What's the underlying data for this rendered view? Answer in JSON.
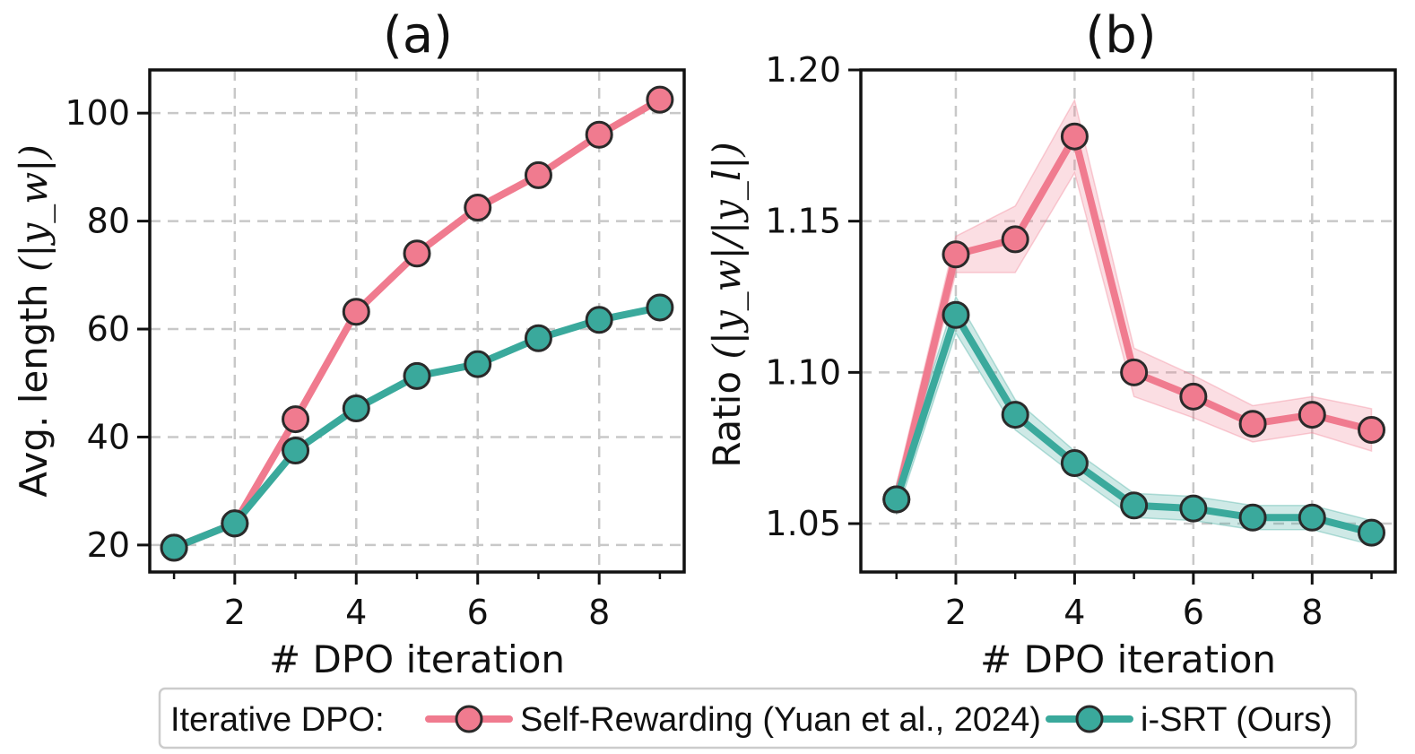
{
  "colors": {
    "self_rewarding": "#f07b8f",
    "isrt": "#3aa99c",
    "marker_edge": "#2a2a2a",
    "grid": "#c8c8c8"
  },
  "legend": {
    "prefix": "Iterative DPO:",
    "items": [
      "Self-Rewarding (Yuan et al., 2024)",
      "i-SRT (Ours)"
    ]
  },
  "chart_data": [
    {
      "type": "line",
      "title": "(a)",
      "xlabel": "# DPO iteration",
      "ylabel": "Avg. length",
      "ylabel_math": "(|y_w|)",
      "xlim": [
        0.6,
        9.4
      ],
      "ylim": [
        15,
        108
      ],
      "x_ticks": [
        2,
        4,
        6,
        8
      ],
      "y_ticks": [
        20,
        40,
        60,
        80,
        100
      ],
      "x_tick_labels": [
        "2",
        "4",
        "6",
        "8"
      ],
      "y_tick_labels": [
        "20",
        "40",
        "60",
        "80",
        "100"
      ],
      "grid": true,
      "x": [
        1,
        2,
        3,
        4,
        5,
        6,
        7,
        8,
        9
      ],
      "series": [
        {
          "name": "Self-Rewarding (Yuan et al., 2024)",
          "values": [
            19.5,
            24.0,
            43.3,
            63.2,
            74.0,
            82.5,
            88.5,
            96.0,
            102.5
          ]
        },
        {
          "name": "i-SRT (Ours)",
          "values": [
            19.5,
            24.0,
            37.5,
            45.3,
            51.3,
            53.5,
            58.3,
            61.7,
            64.0
          ]
        }
      ]
    },
    {
      "type": "line",
      "title": "(b)",
      "xlabel": "# DPO iteration",
      "ylabel": "Ratio",
      "ylabel_math": "(|y_w|/|y_l|)",
      "xlim": [
        0.4,
        9.4
      ],
      "ylim": [
        1.034,
        1.2
      ],
      "x_ticks": [
        2,
        4,
        6,
        8
      ],
      "y_ticks": [
        1.05,
        1.1,
        1.15,
        1.2
      ],
      "x_tick_labels": [
        "2",
        "4",
        "6",
        "8"
      ],
      "y_tick_labels": [
        "1.05",
        "1.10",
        "1.15",
        "1.20"
      ],
      "grid": true,
      "x": [
        1,
        2,
        3,
        4,
        5,
        6,
        7,
        8,
        9
      ],
      "series": [
        {
          "name": "Self-Rewarding (Yuan et al., 2024)",
          "values": [
            1.058,
            1.139,
            1.144,
            1.178,
            1.1,
            1.092,
            1.083,
            1.086,
            1.081
          ],
          "band": [
            0.005,
            0.006,
            0.011,
            0.012,
            0.008,
            0.007,
            0.006,
            0.006,
            0.007
          ]
        },
        {
          "name": "i-SRT (Ours)",
          "values": [
            1.058,
            1.119,
            1.086,
            1.07,
            1.056,
            1.055,
            1.052,
            1.052,
            1.047
          ],
          "band": [
            0.005,
            0.006,
            0.005,
            0.004,
            0.004,
            0.004,
            0.004,
            0.004,
            0.004
          ]
        }
      ]
    }
  ]
}
